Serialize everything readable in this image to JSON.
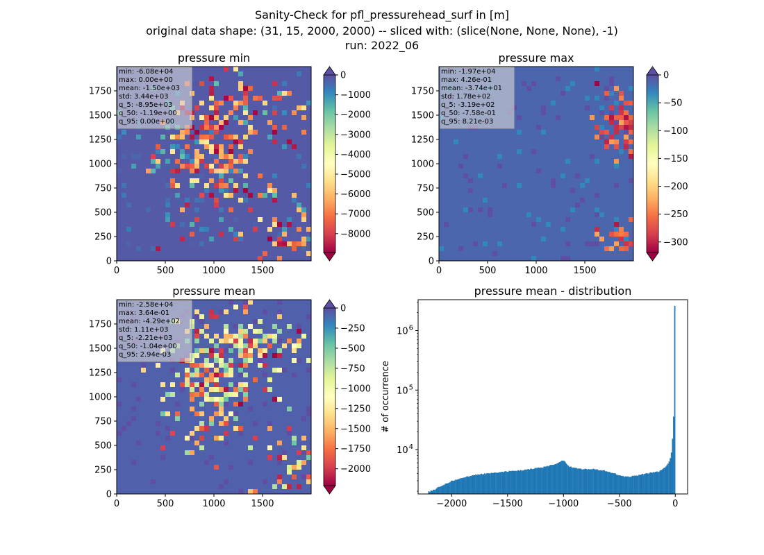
{
  "figure": {
    "title_lines": [
      "Sanity-Check for pfl_pressurehead_surf in [m]",
      "original data shape: (31, 15, 2000, 2000) -- sliced with: (slice(None, None, None), -1)",
      "run: 2022_06"
    ]
  },
  "colors": {
    "spectral": [
      "#9e0142",
      "#d53e4f",
      "#f46d43",
      "#fdae61",
      "#fee08b",
      "#ffffbf",
      "#e6f598",
      "#abdda4",
      "#66c2a5",
      "#3288bd",
      "#5e4fa2"
    ],
    "histogram_bar": "#1f77b4",
    "stats_box_bg": "#d9d9d9"
  },
  "chart_data": [
    {
      "type": "heatmap",
      "title": "pressure min",
      "colormap": "Spectral",
      "x_ticks": [
        "0",
        "500",
        "1000",
        "1500"
      ],
      "y_ticks": [
        "0",
        "250",
        "500",
        "750",
        "1000",
        "1250",
        "1500",
        "1750"
      ],
      "xlim": [
        0,
        2000
      ],
      "ylim": [
        0,
        2000
      ],
      "colorbar": {
        "vmin": -8950,
        "vmax": 0,
        "extend": "both",
        "ticks": [
          0,
          -1000,
          -2000,
          -3000,
          -4000,
          -5000,
          -6000,
          -7000,
          -8000
        ],
        "tick_labels": [
          "0",
          "−1000",
          "−2000",
          "−3000",
          "−4000",
          "−5000",
          "−6000",
          "−7000",
          "−8000"
        ]
      },
      "stats": [
        "min: -6.08e+04",
        "max: 0.00e+00",
        "mean: -1.50e+03",
        "std: 3.44e+03",
        "q_5: -8.95e+03",
        "q_50: -1.19e+00",
        "q_95: 0.00e+00"
      ]
    },
    {
      "type": "heatmap",
      "title": "pressure max",
      "colormap": "Spectral",
      "x_ticks": [
        "0",
        "500",
        "1000",
        "1500"
      ],
      "y_ticks": [
        "0",
        "250",
        "500",
        "750",
        "1000",
        "1250",
        "1500",
        "1750"
      ],
      "xlim": [
        0,
        2000
      ],
      "ylim": [
        0,
        2000
      ],
      "colorbar": {
        "vmin": -319,
        "vmax": 0.0082,
        "extend": "both",
        "ticks": [
          0,
          -50,
          -100,
          -150,
          -200,
          -250,
          -300
        ],
        "tick_labels": [
          "0",
          "−50",
          "−100",
          "−150",
          "−200",
          "−250",
          "−300"
        ]
      },
      "stats": [
        "min: -1.97e+04",
        "max: 4.26e-01",
        "mean: -3.74e+01",
        "std: 1.78e+02",
        "q_5: -3.19e+02",
        "q_50: -7.58e-01",
        "q_95: 8.21e-03"
      ]
    },
    {
      "type": "heatmap",
      "title": "pressure mean",
      "colormap": "Spectral",
      "x_ticks": [
        "0",
        "500",
        "1000",
        "1500"
      ],
      "y_ticks": [
        "0",
        "250",
        "500",
        "750",
        "1000",
        "1250",
        "1500",
        "1750"
      ],
      "xlim": [
        0,
        2000
      ],
      "ylim": [
        0,
        2000
      ],
      "colorbar": {
        "vmin": -2210,
        "vmax": 0.00294,
        "extend": "both",
        "ticks": [
          0,
          -250,
          -500,
          -750,
          -1000,
          -1250,
          -1500,
          -1750,
          -2000
        ],
        "tick_labels": [
          "0",
          "−250",
          "−500",
          "−750",
          "−1000",
          "−1250",
          "−1500",
          "−1750",
          "−2000"
        ]
      },
      "stats": [
        "min: -2.58e+04",
        "max: 3.64e-01",
        "mean: -4.29e+02",
        "std: 1.11e+03",
        "q_5: -2.21e+03",
        "q_50: -1.04e+00",
        "q_95: 2.94e-03"
      ]
    },
    {
      "type": "bar",
      "title": "pressure mean - distribution",
      "ylabel": "# of occurrence",
      "y_scale": "log",
      "xlim": [
        -2300,
        110
      ],
      "ylim": [
        1800,
        3300000
      ],
      "x_ticks": [
        -2000,
        -1500,
        -1000,
        -500,
        0
      ],
      "x_tick_labels": [
        "−2000",
        "−1500",
        "−1000",
        "−500",
        "0"
      ],
      "y_ticks": [
        10000,
        100000,
        1000000
      ],
      "y_tick_base": "10",
      "y_tick_exponents": [
        "4",
        "5",
        "6"
      ],
      "bin_range": [
        -2210,
        0
      ],
      "bin_width": 10,
      "profile": {
        "x": [
          -2210,
          -2150,
          -2100,
          -2000,
          -1900,
          -1800,
          -1700,
          -1600,
          -1500,
          -1400,
          -1300,
          -1200,
          -1100,
          -1050,
          -1010,
          -990,
          -950,
          -900,
          -850,
          -800,
          -750,
          -700,
          -650,
          -600,
          -550,
          -500,
          -450,
          -400,
          -350,
          -300,
          -250,
          -200,
          -150,
          -100,
          -80,
          -60,
          -40,
          -30,
          -20,
          -10,
          0
        ],
        "y": [
          1950,
          2150,
          2450,
          2950,
          3350,
          3750,
          3950,
          4150,
          4300,
          4450,
          4700,
          5000,
          5500,
          5900,
          6600,
          6300,
          5200,
          4900,
          4750,
          4700,
          4750,
          4600,
          4500,
          4250,
          4000,
          3700,
          3500,
          3550,
          3650,
          3850,
          4000,
          4150,
          4300,
          4900,
          5400,
          6000,
          7500,
          10500,
          22000,
          60000,
          2600000
        ]
      }
    }
  ]
}
